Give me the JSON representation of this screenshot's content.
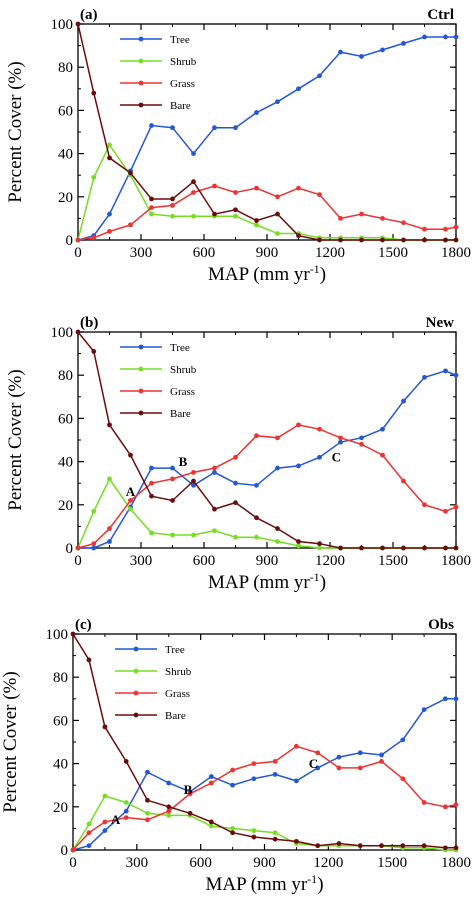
{
  "colors": {
    "Tree": "#2457d6",
    "Shrub": "#77dd22",
    "Grass": "#ee3333",
    "Bare": "#6b0d0d"
  },
  "chart_data": [
    {
      "type": "line",
      "panel_label": "(a)",
      "corner_title": "Ctrl",
      "xlabel": "MAP (mm yr",
      "xlabel_sup": "-1",
      "xlabel_close": ")",
      "ylabel": "Percent Cover (%)",
      "xlim": [
        0,
        1800
      ],
      "ylim": [
        0,
        100
      ],
      "xticks": [
        0,
        300,
        600,
        900,
        1200,
        1500,
        1800
      ],
      "yticks": [
        0,
        20,
        40,
        60,
        80,
        100
      ],
      "legend_position": "top-left",
      "x": [
        0,
        75,
        150,
        250,
        350,
        450,
        550,
        650,
        750,
        850,
        950,
        1050,
        1150,
        1250,
        1350,
        1450,
        1550,
        1650,
        1750,
        1800
      ],
      "series": [
        {
          "name": "Tree",
          "values": [
            0,
            2,
            12,
            32,
            53,
            52,
            40,
            52,
            52,
            59,
            64,
            70,
            76,
            87,
            85,
            88,
            91,
            94,
            94,
            94
          ]
        },
        {
          "name": "Shrub",
          "values": [
            0,
            29,
            44,
            30,
            12,
            11,
            11,
            11,
            11,
            7,
            3,
            3,
            1,
            1,
            1,
            1,
            0,
            0,
            0,
            0
          ]
        },
        {
          "name": "Grass",
          "values": [
            0,
            1,
            4,
            7,
            15,
            16,
            22,
            25,
            22,
            24,
            20,
            24,
            21,
            10,
            12,
            10,
            8,
            5,
            5,
            6
          ]
        },
        {
          "name": "Bare",
          "values": [
            100,
            68,
            38,
            31,
            19,
            19,
            27,
            12,
            14,
            9,
            12,
            2,
            0,
            0,
            0,
            0,
            0,
            0,
            0,
            0
          ]
        }
      ],
      "annotations": []
    },
    {
      "type": "line",
      "panel_label": "(b)",
      "corner_title": "New",
      "xlabel": "MAP (mm yr",
      "xlabel_sup": "-1",
      "xlabel_close": ")",
      "ylabel": "Percent Cover (%)",
      "xlim": [
        0,
        1800
      ],
      "ylim": [
        0,
        100
      ],
      "xticks": [
        0,
        300,
        600,
        900,
        1200,
        1500,
        1800
      ],
      "yticks": [
        0,
        20,
        40,
        60,
        80,
        100
      ],
      "legend_position": "top-left",
      "x": [
        0,
        75,
        150,
        250,
        350,
        450,
        550,
        650,
        750,
        850,
        950,
        1050,
        1150,
        1250,
        1350,
        1450,
        1550,
        1650,
        1750,
        1800
      ],
      "series": [
        {
          "name": "Tree",
          "values": [
            0,
            0,
            3,
            19,
            37,
            37,
            29,
            35,
            30,
            29,
            37,
            38,
            42,
            49,
            51,
            55,
            68,
            79,
            82,
            80
          ]
        },
        {
          "name": "Shrub",
          "values": [
            0,
            17,
            32,
            18,
            7,
            6,
            6,
            8,
            5,
            5,
            3,
            1,
            0,
            0,
            0,
            0,
            0,
            0,
            0,
            0
          ]
        },
        {
          "name": "Grass",
          "values": [
            0,
            2,
            9,
            22,
            30,
            32,
            35,
            37,
            42,
            52,
            51,
            57,
            55,
            51,
            48,
            43,
            31,
            20,
            17,
            19
          ]
        },
        {
          "name": "Bare",
          "values": [
            100,
            91,
            57,
            43,
            24,
            22,
            31,
            18,
            21,
            14,
            9,
            3,
            2,
            0,
            0,
            0,
            0,
            0,
            0,
            0
          ]
        }
      ],
      "annotations": [
        {
          "text": "A",
          "x": 250,
          "y": 24
        },
        {
          "text": "B",
          "x": 500,
          "y": 38
        },
        {
          "text": "C",
          "x": 1230,
          "y": 40
        }
      ]
    },
    {
      "type": "line",
      "panel_label": "(c)",
      "corner_title": "Obs",
      "xlabel": "MAP (mm yr",
      "xlabel_sup": "-1",
      "xlabel_close": ")",
      "ylabel": "Percent Cover (%)",
      "xlim": [
        0,
        1800
      ],
      "ylim": [
        0,
        100
      ],
      "xticks": [
        0,
        300,
        600,
        900,
        1200,
        1500,
        1800
      ],
      "yticks": [
        0,
        20,
        40,
        60,
        80,
        100
      ],
      "legend_position": "top-left",
      "x": [
        0,
        75,
        150,
        250,
        350,
        450,
        550,
        650,
        750,
        850,
        950,
        1050,
        1150,
        1250,
        1350,
        1450,
        1550,
        1650,
        1750,
        1800
      ],
      "series": [
        {
          "name": "Tree",
          "values": [
            0,
            2,
            9,
            18,
            36,
            31,
            27,
            34,
            30,
            33,
            35,
            32,
            38,
            43,
            45,
            44,
            51,
            65,
            70,
            70
          ]
        },
        {
          "name": "Shrub",
          "values": [
            0,
            12,
            25,
            22,
            17,
            16,
            16,
            11,
            10,
            9,
            8,
            3,
            2,
            2,
            2,
            2,
            1,
            1,
            0,
            0
          ]
        },
        {
          "name": "Grass",
          "values": [
            0,
            8,
            13,
            15,
            14,
            18,
            26,
            31,
            37,
            40,
            41,
            48,
            45,
            38,
            38,
            41,
            33,
            22,
            20,
            21
          ]
        },
        {
          "name": "Bare",
          "values": [
            100,
            88,
            57,
            41,
            23,
            20,
            17,
            13,
            8,
            6,
            5,
            4,
            2,
            3,
            2,
            2,
            2,
            2,
            1,
            1
          ]
        }
      ],
      "annotations": [
        {
          "text": "A",
          "x": 200,
          "y": 12
        },
        {
          "text": "B",
          "x": 540,
          "y": 26
        },
        {
          "text": "C",
          "x": 1130,
          "y": 38
        }
      ]
    }
  ]
}
